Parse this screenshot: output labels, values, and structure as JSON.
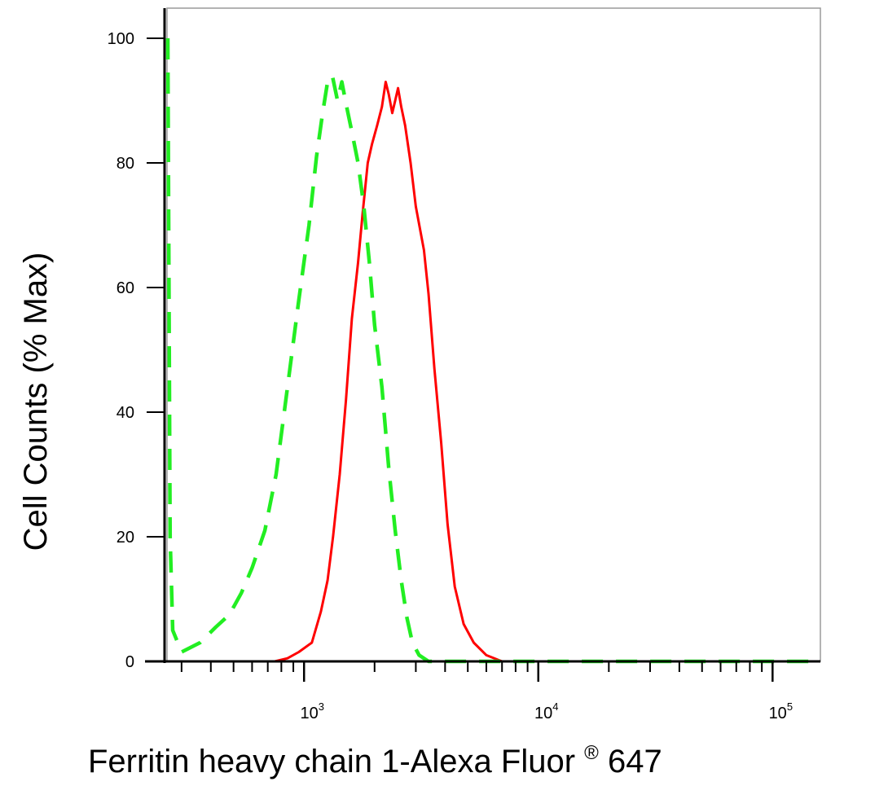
{
  "chart_data": {
    "type": "line",
    "title": "",
    "xlabel": "Ferritin heavy chain 1-Alexa Fluor",
    "xlabel_superscript": "®",
    "xlabel_suffix": "647",
    "ylabel": "Cell Counts (% Max)",
    "x_scale": "log",
    "xlim": [
      260,
      160000
    ],
    "ylim": [
      0,
      105
    ],
    "grid": false,
    "legend": "none",
    "y_ticks": [
      {
        "value": 0,
        "label": "0"
      },
      {
        "value": 20,
        "label": "20"
      },
      {
        "value": 40,
        "label": "40"
      },
      {
        "value": 60,
        "label": "60"
      },
      {
        "value": 80,
        "label": "80"
      },
      {
        "value": 100,
        "label": "100"
      }
    ],
    "x_major_ticks": [
      {
        "value": 1000,
        "base": "10",
        "exp": "3"
      },
      {
        "value": 10000,
        "base": "10",
        "exp": "4"
      },
      {
        "value": 100000,
        "base": "10",
        "exp": "5"
      }
    ],
    "series": [
      {
        "color": "#ff0000",
        "style": "solid",
        "points": [
          [
            270,
            0
          ],
          [
            500,
            0
          ],
          [
            750,
            0
          ],
          [
            850,
            0.5
          ],
          [
            950,
            1.5
          ],
          [
            1080,
            3
          ],
          [
            1180,
            8
          ],
          [
            1260,
            13
          ],
          [
            1330,
            20
          ],
          [
            1420,
            30
          ],
          [
            1510,
            42
          ],
          [
            1600,
            55
          ],
          [
            1700,
            64
          ],
          [
            1780,
            72
          ],
          [
            1870,
            80
          ],
          [
            1950,
            83
          ],
          [
            2050,
            86
          ],
          [
            2150,
            89
          ],
          [
            2230,
            93
          ],
          [
            2300,
            91
          ],
          [
            2380,
            88
          ],
          [
            2450,
            90
          ],
          [
            2520,
            92
          ],
          [
            2600,
            89
          ],
          [
            2700,
            86
          ],
          [
            2850,
            80
          ],
          [
            3000,
            73
          ],
          [
            3250,
            66
          ],
          [
            3400,
            59
          ],
          [
            3600,
            47
          ],
          [
            3850,
            35
          ],
          [
            4100,
            22
          ],
          [
            4400,
            12
          ],
          [
            4800,
            6
          ],
          [
            5300,
            3
          ],
          [
            6000,
            1
          ],
          [
            7000,
            0
          ],
          [
            10000,
            0
          ],
          [
            50000,
            0
          ],
          [
            160000,
            0
          ]
        ]
      },
      {
        "color": "#22ee22",
        "style": "dashed",
        "points": [
          [
            262,
            100
          ],
          [
            265,
            60
          ],
          [
            268,
            20
          ],
          [
            275,
            5
          ],
          [
            300,
            1.5
          ],
          [
            360,
            3
          ],
          [
            420,
            5.5
          ],
          [
            480,
            7.5
          ],
          [
            540,
            11
          ],
          [
            600,
            15
          ],
          [
            680,
            21
          ],
          [
            760,
            30
          ],
          [
            850,
            44
          ],
          [
            950,
            58
          ],
          [
            1050,
            70
          ],
          [
            1130,
            81
          ],
          [
            1200,
            88
          ],
          [
            1260,
            93
          ],
          [
            1320,
            94
          ],
          [
            1390,
            90
          ],
          [
            1450,
            93
          ],
          [
            1520,
            89
          ],
          [
            1600,
            85
          ],
          [
            1700,
            80
          ],
          [
            1800,
            73
          ],
          [
            1900,
            64
          ],
          [
            2000,
            54
          ],
          [
            2150,
            44
          ],
          [
            2300,
            31
          ],
          [
            2450,
            21
          ],
          [
            2600,
            13
          ],
          [
            2750,
            7
          ],
          [
            2900,
            3
          ],
          [
            3100,
            1
          ],
          [
            3400,
            0
          ],
          [
            5000,
            0
          ],
          [
            20000,
            0
          ],
          [
            160000,
            0
          ]
        ]
      }
    ]
  }
}
